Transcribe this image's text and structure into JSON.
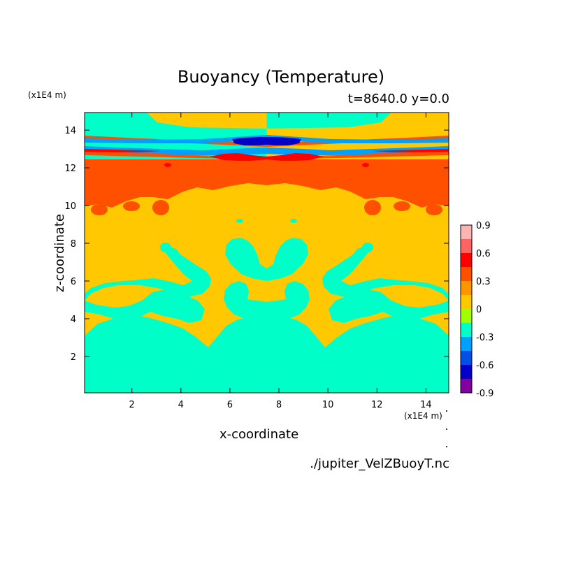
{
  "chart_data": {
    "type": "heatmap",
    "title": "Buoyancy (Temperature)",
    "subtitle": "t=8640.0 y=0.0",
    "xlabel": "x-coordinate",
    "ylabel": "z-coordinate",
    "x_unit": "(x1E4 m)",
    "y_unit": "(x1E4 m)",
    "source": "./jupiter_VelZBuoyT.nc",
    "xlim": [
      0.07,
      14.93
    ],
    "ylim": [
      0.07,
      14.93
    ],
    "x_ticks": [
      2,
      4,
      6,
      8,
      10,
      12,
      14
    ],
    "y_ticks": [
      2,
      4,
      6,
      8,
      10,
      12,
      14
    ],
    "colorbar": {
      "levels": [
        -0.9,
        -0.75,
        -0.6,
        -0.45,
        -0.3,
        -0.15,
        0,
        0.15,
        0.3,
        0.45,
        0.6,
        0.75,
        0.9
      ],
      "tick_values": [
        -0.9,
        -0.6,
        -0.3,
        0,
        0.3,
        0.6,
        0.9
      ],
      "tick_labels": [
        "-0.9",
        "-0.6",
        "-0.3",
        "0",
        "0.3",
        "0.6",
        "0.9"
      ],
      "colors": [
        "#8000a0",
        "#0000c8",
        "#0050e6",
        "#00a0ff",
        "#00ffc8",
        "#a0ff00",
        "#ffc800",
        "#ff9600",
        "#ff5000",
        "#ff0000",
        "#ff6464",
        "#ffb4b4"
      ]
    },
    "field_description_values": {
      "background": 0.07,
      "upper_band_warm": 0.35,
      "cool_layer": -0.2,
      "cold_streak": -0.4,
      "coldest_core": -0.7,
      "warm_streak": 0.5
    }
  }
}
